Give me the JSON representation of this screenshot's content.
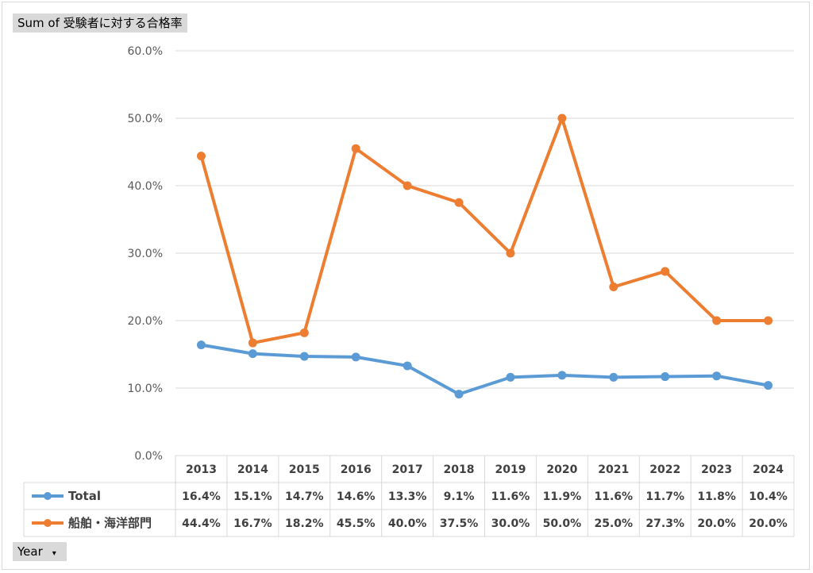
{
  "header": {
    "field_label": "Sum of 受験者に対する合格率"
  },
  "footer": {
    "axis_field_label": "Year",
    "dropdown_glyph": "▾"
  },
  "colors": {
    "total": "#5b9bd5",
    "marine": "#ed7d31",
    "grid": "#d9d9d9",
    "text": "#404040"
  },
  "chart_data": {
    "type": "line",
    "x": [
      "2013",
      "2014",
      "2015",
      "2016",
      "2017",
      "2018",
      "2019",
      "2020",
      "2021",
      "2022",
      "2023",
      "2024"
    ],
    "ylim": [
      0,
      0.6
    ],
    "y_ticks": [
      0,
      0.1,
      0.2,
      0.3,
      0.4,
      0.5,
      0.6
    ],
    "y_tick_labels": [
      "0.0%",
      "10.0%",
      "20.0%",
      "30.0%",
      "40.0%",
      "50.0%",
      "60.0%"
    ],
    "grid": true,
    "legend": "data-table",
    "series": [
      {
        "name": "Total",
        "values": [
          0.164,
          0.151,
          0.147,
          0.146,
          0.133,
          0.091,
          0.116,
          0.119,
          0.116,
          0.117,
          0.118,
          0.104
        ],
        "labels": [
          "16.4%",
          "15.1%",
          "14.7%",
          "14.6%",
          "13.3%",
          "9.1%",
          "11.6%",
          "11.9%",
          "11.6%",
          "11.7%",
          "11.8%",
          "10.4%"
        ]
      },
      {
        "name": "船舶・海洋部門",
        "values": [
          0.444,
          0.167,
          0.182,
          0.455,
          0.4,
          0.375,
          0.3,
          0.5,
          0.25,
          0.273,
          0.2,
          0.2
        ],
        "labels": [
          "44.4%",
          "16.7%",
          "18.2%",
          "45.5%",
          "40.0%",
          "37.5%",
          "30.0%",
          "50.0%",
          "25.0%",
          "27.3%",
          "20.0%",
          "20.0%"
        ]
      }
    ]
  }
}
